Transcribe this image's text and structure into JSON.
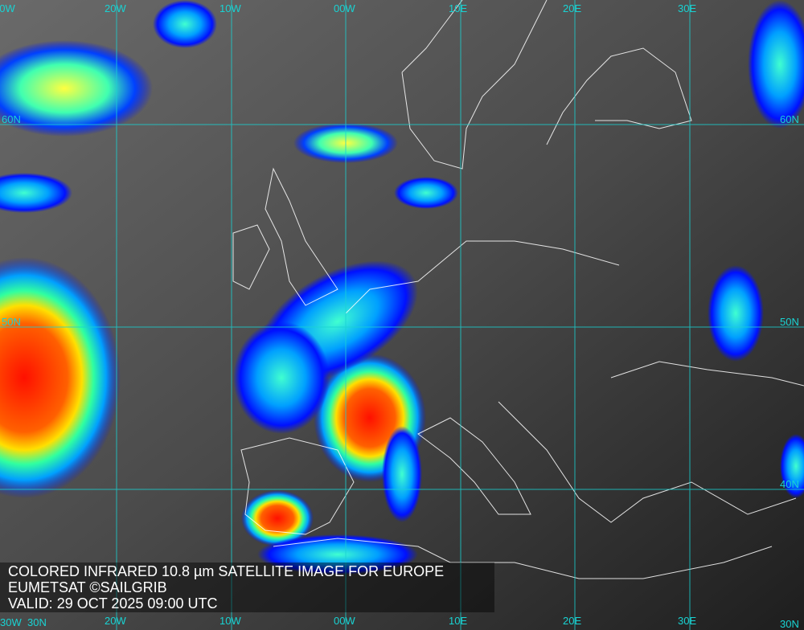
{
  "caption": {
    "line1": "COLORED INFRARED 10.8 µm SATELLITE IMAGE FOR EUROPE",
    "line2": "EUMETSAT ©SAILGRIB",
    "line3": "VALID:  29 OCT 2025 09:00 UTC"
  },
  "grid": {
    "color": "#19d3d3",
    "lon_labels": [
      "30W",
      "20W",
      "10W",
      "00W",
      "10E",
      "20E",
      "30E"
    ],
    "lat_labels": [
      "60N",
      "50N",
      "40N",
      "30N"
    ]
  },
  "colors": {
    "background": "#3a3a3a",
    "cold_cloud_blue": "#0018ff",
    "cyan": "#00e0ff",
    "yellow": "#ffff40",
    "red": "#ff1000"
  }
}
